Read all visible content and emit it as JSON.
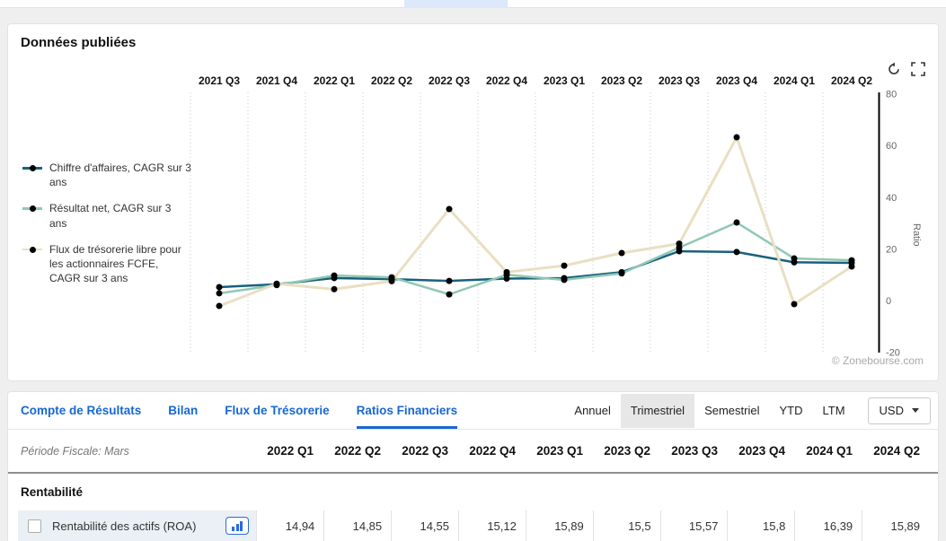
{
  "topbar": {
    "active_tab_highlight_color": "#dbe9fa"
  },
  "chart_card": {
    "title": "Données publiées",
    "copyright": "© Zonebourse.com",
    "icons": {
      "reset": "reset-circular-arrow",
      "fullscreen": "fullscreen-corners"
    }
  },
  "chart_data": {
    "type": "line",
    "title": "Données publiées",
    "categories": [
      "2021 Q3",
      "2021 Q4",
      "2022 Q1",
      "2022 Q2",
      "2022 Q3",
      "2022 Q4",
      "2023 Q1",
      "2023 Q2",
      "2023 Q3",
      "2023 Q4",
      "2024 Q1",
      "2024 Q2"
    ],
    "series": [
      {
        "name": "Chiffre d'affaires, CAGR sur 3 ans",
        "color": "#19607f",
        "values": [
          5.2,
          6.3,
          8.7,
          8.3,
          7.6,
          8.5,
          8.7,
          11.0,
          19.1,
          18.8,
          14.8,
          14.6
        ]
      },
      {
        "name": "Résultat net, CAGR sur 3 ans",
        "color": "#8fc8b4",
        "values": [
          2.8,
          6.0,
          9.7,
          9.0,
          2.4,
          10.0,
          8.0,
          10.5,
          20.5,
          30.2,
          16.3,
          15.6
        ]
      },
      {
        "name": "Flux de trésorerie libre pour les actionnaires FCFE, CAGR sur 3 ans",
        "color": "#e9dfc2",
        "values": [
          -2.1,
          6.5,
          4.4,
          7.5,
          35.4,
          11.0,
          13.5,
          18.4,
          22.0,
          63.2,
          -1.4,
          13.2
        ]
      }
    ],
    "xlabel": "",
    "ylabel": "Ratio",
    "ylim": [
      -20,
      80
    ],
    "yticks": [
      80,
      60,
      40,
      20,
      0,
      -20
    ],
    "x_axis_position": "top",
    "grid": "dotted-vertical",
    "marker_color": "#000000",
    "legend_position": "left"
  },
  "financial_tabs": {
    "items": [
      {
        "id": "compte-de-resultats",
        "label": "Compte de Résultats",
        "active": false
      },
      {
        "id": "bilan",
        "label": "Bilan",
        "active": false
      },
      {
        "id": "flux-de-tresorerie",
        "label": "Flux de Trésorerie",
        "active": false
      },
      {
        "id": "ratios-financiers",
        "label": "Ratios Financiers",
        "active": true
      }
    ]
  },
  "period_controls": {
    "options": [
      {
        "id": "annuel",
        "label": "Annuel",
        "selected": false
      },
      {
        "id": "trimestriel",
        "label": "Trimestriel",
        "selected": true
      },
      {
        "id": "semestriel",
        "label": "Semestriel",
        "selected": false
      },
      {
        "id": "ytd",
        "label": "YTD",
        "selected": false
      },
      {
        "id": "ltm",
        "label": "LTM",
        "selected": false
      }
    ],
    "currency": "USD",
    "currency_dropdown_icon": "caret-down"
  },
  "table": {
    "fiscal_period_label": "Période Fiscale: Mars",
    "columns": [
      "2022 Q1",
      "2022 Q2",
      "2022 Q3",
      "2022 Q4",
      "2023 Q1",
      "2023 Q2",
      "2023 Q3",
      "2023 Q4",
      "2024 Q1",
      "2024 Q2"
    ],
    "section": "Rentabilité",
    "rows": [
      {
        "label": "Rentabilité des actifs (ROA)",
        "checkbox_checked": false,
        "chart_button_icon": "bar-chart",
        "values": [
          "14,94",
          "14,85",
          "14,55",
          "15,12",
          "15,89",
          "15,5",
          "15,57",
          "15,8",
          "16,39",
          "15,89"
        ]
      }
    ]
  }
}
